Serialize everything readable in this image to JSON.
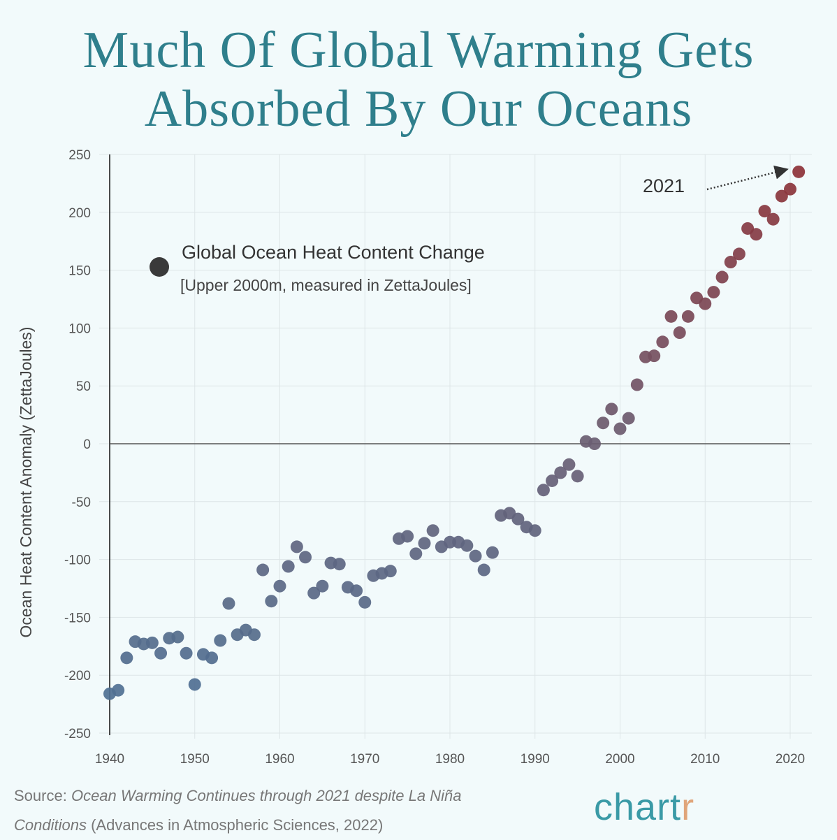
{
  "title_line1": "Much Of Global Warming Gets",
  "title_line2": "Absorbed By Our Oceans",
  "chart_data": {
    "type": "scatter",
    "title": "Much Of Global Warming Gets Absorbed By Our Oceans",
    "xlabel": "",
    "ylabel": "Ocean Heat Content Anomaly (ZettaJoules)",
    "xlim": [
      1940,
      2022
    ],
    "ylim": [
      -250,
      250
    ],
    "xticks": [
      1940,
      1950,
      1960,
      1970,
      1980,
      1990,
      2000,
      2010,
      2020
    ],
    "yticks": [
      250,
      200,
      150,
      100,
      50,
      0,
      -50,
      -100,
      -150,
      -200,
      -250
    ],
    "grid": true,
    "legend": {
      "title": "Global Ocean Heat Content Change",
      "subtitle": "[Upper 2000m, measured in ZettaJoules]",
      "placement": "top-left"
    },
    "annotation": {
      "text": "2021",
      "points_to_year": 2021
    },
    "colors": {
      "low": "#4b7398",
      "mid": "#6a5d72",
      "high": "#8f2e33",
      "legend_marker": "#3a3a3a"
    },
    "x": [
      1940,
      1941,
      1942,
      1943,
      1944,
      1945,
      1946,
      1947,
      1948,
      1949,
      1950,
      1951,
      1952,
      1953,
      1954,
      1955,
      1956,
      1957,
      1958,
      1959,
      1960,
      1961,
      1962,
      1963,
      1964,
      1965,
      1966,
      1967,
      1968,
      1969,
      1970,
      1971,
      1972,
      1973,
      1974,
      1975,
      1976,
      1977,
      1978,
      1979,
      1980,
      1981,
      1982,
      1983,
      1984,
      1985,
      1986,
      1987,
      1988,
      1989,
      1990,
      1991,
      1992,
      1993,
      1994,
      1995,
      1996,
      1997,
      1998,
      1999,
      2000,
      2001,
      2002,
      2003,
      2004,
      2005,
      2006,
      2007,
      2008,
      2009,
      2010,
      2011,
      2012,
      2013,
      2014,
      2015,
      2016,
      2017,
      2018,
      2019,
      2020,
      2021
    ],
    "y": [
      -216,
      -213,
      -185,
      -171,
      -173,
      -172,
      -181,
      -168,
      -167,
      -181,
      -208,
      -182,
      -185,
      -170,
      -138,
      -165,
      -161,
      -165,
      -109,
      -136,
      -123,
      -106,
      -89,
      -98,
      -129,
      -123,
      -103,
      -104,
      -124,
      -127,
      -137,
      -114,
      -112,
      -110,
      -82,
      -80,
      -95,
      -86,
      -75,
      -89,
      -85,
      -85,
      -88,
      -97,
      -109,
      -94,
      -62,
      -60,
      -65,
      -72,
      -75,
      -40,
      -32,
      -25,
      -18,
      -28,
      2,
      0,
      18,
      30,
      13,
      22,
      51,
      75,
      76,
      88,
      110,
      96,
      110,
      126,
      121,
      131,
      144,
      157,
      164,
      186,
      181,
      201,
      194,
      214,
      220,
      235
    ]
  },
  "source": {
    "label": "Source:",
    "title": "Ocean Warming Continues through 2021 despite La Niña Conditions",
    "rest": "(Advances in Atmospheric Sciences, 2022)"
  },
  "logo": "chartr"
}
